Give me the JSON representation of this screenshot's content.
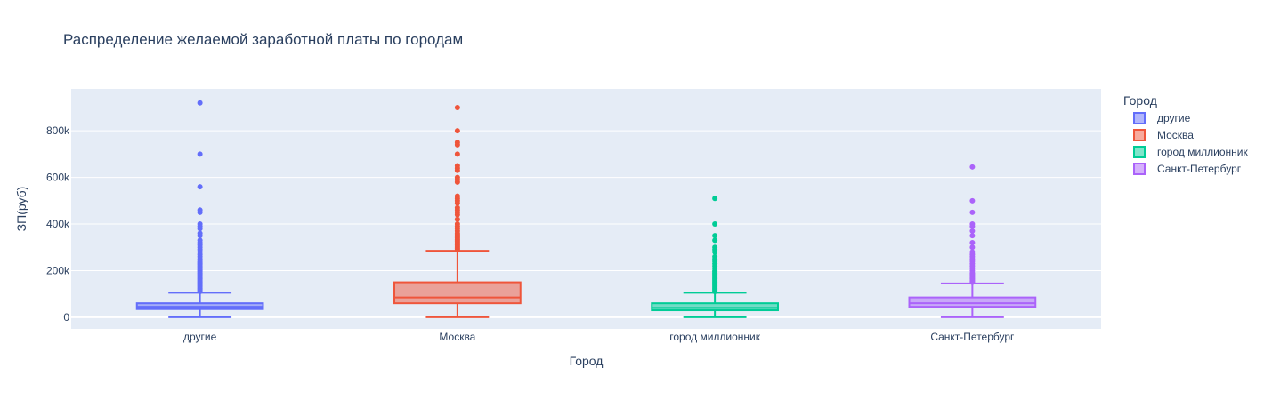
{
  "chart_data": {
    "type": "box",
    "title": "Распределение желаемой заработной платы по городам",
    "xlabel": "Город",
    "ylabel": "ЗП(руб)",
    "ylim": [
      -50000,
      980000
    ],
    "yticks": [
      0,
      200000,
      400000,
      600000,
      800000
    ],
    "ytick_labels": [
      "0",
      "200k",
      "400k",
      "600k",
      "800k"
    ],
    "grid": true,
    "legend": {
      "title": "Город",
      "position": "right"
    },
    "categories": [
      "другие",
      "Москва",
      "город миллионник",
      "Санкт-Петербург"
    ],
    "series": [
      {
        "name": "другие",
        "color": "#636efa",
        "min": 0,
        "q1": 35000,
        "median": 45000,
        "q3": 60000,
        "upper_fence": 105000,
        "outliers": [
          110000,
          115000,
          120000,
          125000,
          130000,
          135000,
          140000,
          145000,
          150000,
          155000,
          160000,
          165000,
          170000,
          175000,
          180000,
          185000,
          190000,
          195000,
          200000,
          205000,
          210000,
          215000,
          220000,
          225000,
          230000,
          235000,
          240000,
          250000,
          260000,
          270000,
          280000,
          290000,
          300000,
          310000,
          320000,
          330000,
          350000,
          360000,
          380000,
          390000,
          400000,
          450000,
          460000,
          560000,
          700000,
          920000
        ]
      },
      {
        "name": "Москва",
        "color": "#ef553b",
        "min": 0,
        "q1": 60000,
        "median": 85000,
        "q3": 150000,
        "upper_fence": 285000,
        "outliers": [
          290000,
          295000,
          300000,
          305000,
          310000,
          315000,
          320000,
          325000,
          330000,
          335000,
          340000,
          345000,
          350000,
          355000,
          360000,
          370000,
          380000,
          390000,
          400000,
          420000,
          440000,
          450000,
          460000,
          470000,
          490000,
          500000,
          510000,
          520000,
          580000,
          590000,
          600000,
          630000,
          640000,
          650000,
          700000,
          740000,
          750000,
          800000,
          900000
        ]
      },
      {
        "name": "город миллионник",
        "color": "#00cc96",
        "min": 0,
        "q1": 30000,
        "median": 40000,
        "q3": 60000,
        "upper_fence": 105000,
        "outliers": [
          110000,
          115000,
          120000,
          125000,
          130000,
          135000,
          140000,
          145000,
          150000,
          155000,
          160000,
          165000,
          170000,
          175000,
          180000,
          185000,
          190000,
          195000,
          200000,
          210000,
          220000,
          230000,
          240000,
          250000,
          260000,
          280000,
          290000,
          300000,
          330000,
          350000,
          400000,
          510000
        ]
      },
      {
        "name": "Санкт-Петербург",
        "color": "#ab63fa",
        "min": 0,
        "q1": 45000,
        "median": 60000,
        "q3": 85000,
        "upper_fence": 145000,
        "outliers": [
          150000,
          155000,
          160000,
          165000,
          170000,
          175000,
          180000,
          185000,
          190000,
          200000,
          210000,
          220000,
          230000,
          240000,
          250000,
          260000,
          270000,
          280000,
          300000,
          320000,
          350000,
          370000,
          390000,
          400000,
          450000,
          500000,
          645000
        ]
      }
    ]
  }
}
